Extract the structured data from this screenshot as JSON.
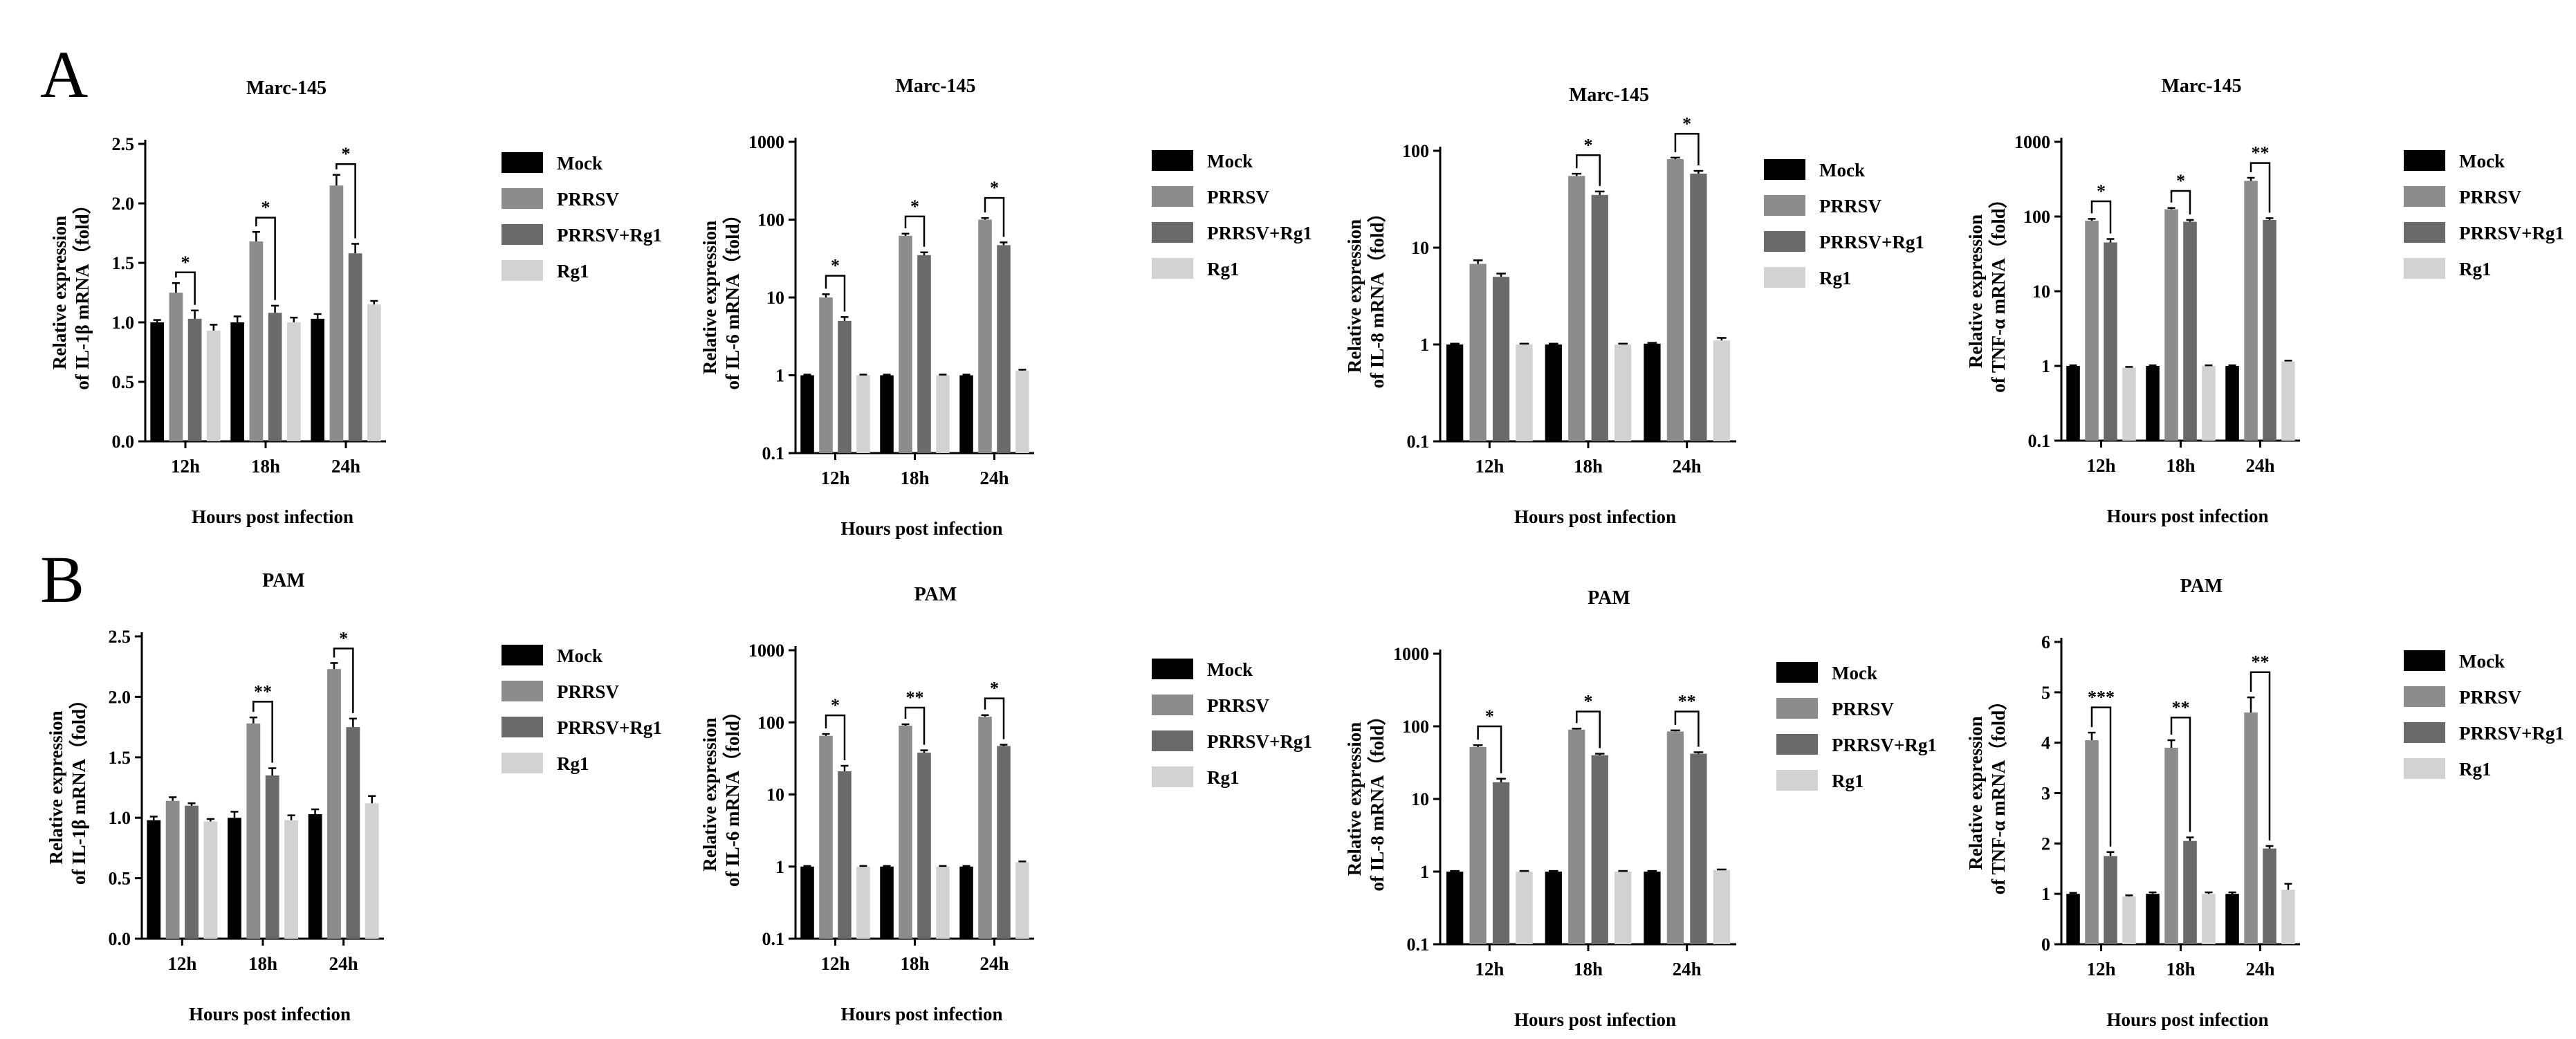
{
  "panel_labels": [
    "A",
    "B"
  ],
  "colors": {
    "Mock": "#000000",
    "PRRSV": "#8c8c8c",
    "PRRSV+Rg1": "#6a6a6a",
    "Rg1": "#d2d2d2"
  },
  "chart_data": [
    {
      "type": "bar",
      "panel": "A",
      "title": "Marc-145",
      "ylabel_lines": [
        "Relative expression",
        "of IL-1β mRNA（fold）"
      ],
      "xlabel": "Hours post infection",
      "categories": [
        "12h",
        "18h",
        "24h"
      ],
      "yscale": "linear",
      "ylim": [
        0,
        2.5
      ],
      "yticks": [
        0.0,
        0.5,
        1.0,
        1.5,
        2.0,
        2.5
      ],
      "ytick_labels": [
        "0.0",
        "0.5",
        "1.0",
        "1.5",
        "2.0",
        "2.5"
      ],
      "series": [
        {
          "name": "Mock",
          "values": [
            1.0,
            1.0,
            1.03
          ],
          "errors": [
            0.02,
            0.05,
            0.04
          ]
        },
        {
          "name": "PRRSV",
          "values": [
            1.25,
            1.68,
            2.15
          ],
          "errors": [
            0.08,
            0.08,
            0.09
          ]
        },
        {
          "name": "PRRSV+Rg1",
          "values": [
            1.03,
            1.08,
            1.58
          ],
          "errors": [
            0.07,
            0.06,
            0.08
          ]
        },
        {
          "name": "Rg1",
          "values": [
            0.93,
            1.0,
            1.15
          ],
          "errors": [
            0.05,
            0.04,
            0.03
          ]
        }
      ],
      "significance": [
        {
          "category": 0,
          "label": "*",
          "level": 1.42
        },
        {
          "category": 1,
          "label": "*",
          "level": 1.88
        },
        {
          "category": 2,
          "label": "*",
          "level": 2.33
        }
      ],
      "legend_position": "right"
    },
    {
      "type": "bar",
      "panel": "A",
      "title": "Marc-145",
      "ylabel_lines": [
        "Relative expression",
        "of IL-6 mRNA（fold）"
      ],
      "xlabel": "Hours post infection",
      "categories": [
        "12h",
        "18h",
        "24h"
      ],
      "yscale": "log",
      "ylim": [
        0.1,
        1000
      ],
      "yticks": [
        0.1,
        1,
        10,
        100,
        1000
      ],
      "ytick_labels": [
        "0.1",
        "1",
        "10",
        "100",
        "1000"
      ],
      "series": [
        {
          "name": "Mock",
          "values": [
            1.0,
            1.0,
            1.0
          ],
          "errors": [
            0.02,
            0.02,
            0.02
          ]
        },
        {
          "name": "PRRSV",
          "values": [
            10,
            62,
            100
          ],
          "errors": [
            1.0,
            4,
            5
          ]
        },
        {
          "name": "PRRSV+Rg1",
          "values": [
            5,
            35,
            47
          ],
          "errors": [
            0.6,
            3,
            4
          ]
        },
        {
          "name": "Rg1",
          "values": [
            1.0,
            1.0,
            1.15
          ],
          "errors": [
            0.02,
            0.02,
            0.03
          ]
        }
      ],
      "significance": [
        {
          "category": 0,
          "label": "*",
          "level": 19
        },
        {
          "category": 1,
          "label": "*",
          "level": 110
        },
        {
          "category": 2,
          "label": "*",
          "level": 190
        }
      ],
      "legend_position": "right"
    },
    {
      "type": "bar",
      "panel": "A",
      "title": "Marc-145",
      "ylabel_lines": [
        "Relative expression",
        "of IL-8 mRNA（fold）"
      ],
      "xlabel": "Hours post infection",
      "categories": [
        "12h",
        "18h",
        "24h"
      ],
      "yscale": "log",
      "ylim": [
        0.1,
        100
      ],
      "yticks": [
        0.1,
        1,
        10,
        100
      ],
      "ytick_labels": [
        "0.1",
        "1",
        "10",
        "100"
      ],
      "series": [
        {
          "name": "Mock",
          "values": [
            1.0,
            1.0,
            1.02
          ],
          "errors": [
            0.02,
            0.02,
            0.02
          ]
        },
        {
          "name": "PRRSV",
          "values": [
            6.8,
            55,
            82
          ],
          "errors": [
            0.6,
            3,
            3
          ]
        },
        {
          "name": "PRRSV+Rg1",
          "values": [
            5.0,
            35,
            58
          ],
          "errors": [
            0.4,
            3,
            4
          ]
        },
        {
          "name": "Rg1",
          "values": [
            1.0,
            1.0,
            1.1
          ],
          "errors": [
            0.02,
            0.02,
            0.07
          ]
        }
      ],
      "significance": [
        {
          "category": 1,
          "label": "*",
          "level": 90
        },
        {
          "category": 2,
          "label": "*",
          "level": 150
        }
      ],
      "legend_position": "right"
    },
    {
      "type": "bar",
      "panel": "A",
      "title": "Marc-145",
      "ylabel_lines": [
        "Relative expression",
        "of TNF-α mRNA（fold）"
      ],
      "xlabel": "Hours post infection",
      "categories": [
        "12h",
        "18h",
        "24h"
      ],
      "yscale": "log",
      "ylim": [
        0.1,
        1000
      ],
      "yticks": [
        0.1,
        1,
        10,
        100,
        1000
      ],
      "ytick_labels": [
        "0.1",
        "1",
        "10",
        "100",
        "1000"
      ],
      "series": [
        {
          "name": "Mock",
          "values": [
            1.0,
            1.0,
            1.0
          ],
          "errors": [
            0.02,
            0.02,
            0.02
          ]
        },
        {
          "name": "PRRSV",
          "values": [
            88,
            125,
            300
          ],
          "errors": [
            5,
            5,
            30
          ]
        },
        {
          "name": "PRRSV+Rg1",
          "values": [
            45,
            85,
            90
          ],
          "errors": [
            5,
            5,
            5
          ]
        },
        {
          "name": "Rg1",
          "values": [
            0.95,
            1.0,
            1.15
          ],
          "errors": [
            0.02,
            0.02,
            0.03
          ]
        }
      ],
      "significance": [
        {
          "category": 0,
          "label": "*",
          "level": 160
        },
        {
          "category": 1,
          "label": "*",
          "level": 220
        },
        {
          "category": 2,
          "label": "**",
          "level": 520
        }
      ],
      "legend_position": "right"
    },
    {
      "type": "bar",
      "panel": "B",
      "title": "PAM",
      "ylabel_lines": [
        "Relative expression",
        "of IL-1β mRNA（fold）"
      ],
      "xlabel": "Hours post infection",
      "categories": [
        "12h",
        "18h",
        "24h"
      ],
      "yscale": "linear",
      "ylim": [
        0,
        2.5
      ],
      "yticks": [
        0.0,
        0.5,
        1.0,
        1.5,
        2.0,
        2.5
      ],
      "ytick_labels": [
        "0.0",
        "0.5",
        "1.0",
        "1.5",
        "2.0",
        "2.5"
      ],
      "series": [
        {
          "name": "Mock",
          "values": [
            0.98,
            1.0,
            1.03
          ],
          "errors": [
            0.03,
            0.05,
            0.04
          ]
        },
        {
          "name": "PRRSV",
          "values": [
            1.14,
            1.78,
            2.23
          ],
          "errors": [
            0.03,
            0.05,
            0.05
          ]
        },
        {
          "name": "PRRSV+Rg1",
          "values": [
            1.1,
            1.35,
            1.75
          ],
          "errors": [
            0.02,
            0.06,
            0.07
          ]
        },
        {
          "name": "Rg1",
          "values": [
            0.97,
            0.98,
            1.12
          ],
          "errors": [
            0.02,
            0.04,
            0.06
          ]
        }
      ],
      "significance": [
        {
          "category": 1,
          "label": "**",
          "level": 1.96
        },
        {
          "category": 2,
          "label": "*",
          "level": 2.4
        }
      ],
      "legend_position": "right"
    },
    {
      "type": "bar",
      "panel": "B",
      "title": "PAM",
      "ylabel_lines": [
        "Relative expression",
        "of IL-6 mRNA（fold）"
      ],
      "xlabel": "Hours post infection",
      "categories": [
        "12h",
        "18h",
        "24h"
      ],
      "yscale": "log",
      "ylim": [
        0.1,
        1000
      ],
      "yticks": [
        0.1,
        1,
        10,
        100,
        1000
      ],
      "ytick_labels": [
        "0.1",
        "1",
        "10",
        "100",
        "1000"
      ],
      "series": [
        {
          "name": "Mock",
          "values": [
            1.0,
            1.0,
            1.0
          ],
          "errors": [
            0.02,
            0.02,
            0.02
          ]
        },
        {
          "name": "PRRSV",
          "values": [
            65,
            90,
            120
          ],
          "errors": [
            4,
            4,
            6
          ]
        },
        {
          "name": "PRRSV+Rg1",
          "values": [
            21,
            38,
            47
          ],
          "errors": [
            4,
            3,
            2
          ]
        },
        {
          "name": "Rg1",
          "values": [
            1.0,
            1.0,
            1.15
          ],
          "errors": [
            0.02,
            0.02,
            0.03
          ]
        }
      ],
      "significance": [
        {
          "category": 0,
          "label": "*",
          "level": 125
        },
        {
          "category": 1,
          "label": "**",
          "level": 160
        },
        {
          "category": 2,
          "label": "*",
          "level": 215
        }
      ],
      "legend_position": "right"
    },
    {
      "type": "bar",
      "panel": "B",
      "title": "PAM",
      "ylabel_lines": [
        "Relative expression",
        "of IL-8 mRNA（fold）"
      ],
      "xlabel": "Hours post infection",
      "categories": [
        "12h",
        "18h",
        "24h"
      ],
      "yscale": "log",
      "ylim": [
        0.1,
        1000
      ],
      "yticks": [
        0.1,
        1,
        10,
        100,
        1000
      ],
      "ytick_labels": [
        "0.1",
        "1",
        "10",
        "100",
        "1000"
      ],
      "series": [
        {
          "name": "Mock",
          "values": [
            1.0,
            1.0,
            1.0
          ],
          "errors": [
            0.02,
            0.02,
            0.02
          ]
        },
        {
          "name": "PRRSV",
          "values": [
            52,
            90,
            85
          ],
          "errors": [
            3,
            3,
            3
          ]
        },
        {
          "name": "PRRSV+Rg1",
          "values": [
            17,
            40,
            42
          ],
          "errors": [
            2,
            2,
            2
          ]
        },
        {
          "name": "Rg1",
          "values": [
            1.0,
            1.0,
            1.05
          ],
          "errors": [
            0.02,
            0.02,
            0.02
          ]
        }
      ],
      "significance": [
        {
          "category": 0,
          "label": "*",
          "level": 100
        },
        {
          "category": 1,
          "label": "*",
          "level": 160
        },
        {
          "category": 2,
          "label": "**",
          "level": 160
        }
      ],
      "legend_position": "right"
    },
    {
      "type": "bar",
      "panel": "B",
      "title": "PAM",
      "ylabel_lines": [
        "Relative expression",
        "of TNF-α mRNA（fold）"
      ],
      "xlabel": "Hours post infection",
      "categories": [
        "12h",
        "18h",
        "24h"
      ],
      "yscale": "linear",
      "ylim": [
        0,
        6
      ],
      "yticks": [
        0,
        1,
        2,
        3,
        4,
        5,
        6
      ],
      "ytick_labels": [
        "0",
        "1",
        "2",
        "3",
        "4",
        "5",
        "6"
      ],
      "series": [
        {
          "name": "Mock",
          "values": [
            1.0,
            1.0,
            1.0
          ],
          "errors": [
            0.02,
            0.03,
            0.03
          ]
        },
        {
          "name": "PRRSV",
          "values": [
            4.05,
            3.9,
            4.6
          ],
          "errors": [
            0.15,
            0.15,
            0.3
          ]
        },
        {
          "name": "PRRSV+Rg1",
          "values": [
            1.75,
            2.05,
            1.9
          ],
          "errors": [
            0.08,
            0.07,
            0.05
          ]
        },
        {
          "name": "Rg1",
          "values": [
            0.95,
            1.0,
            1.08
          ],
          "errors": [
            0.02,
            0.03,
            0.12
          ]
        }
      ],
      "significance": [
        {
          "category": 0,
          "label": "***",
          "level": 4.7
        },
        {
          "category": 1,
          "label": "**",
          "level": 4.5
        },
        {
          "category": 2,
          "label": "**",
          "level": 5.4
        }
      ],
      "legend_position": "right"
    }
  ]
}
